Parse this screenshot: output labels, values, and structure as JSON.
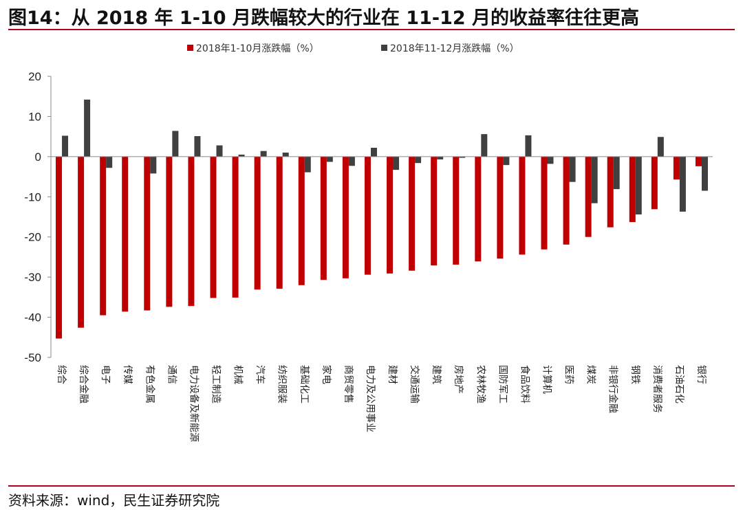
{
  "title": "图14：从 2018 年 1-10 月跌幅较大的行业在 11-12 月的收益率往往更高",
  "source": "资料来源：wind，民生证券研究院",
  "chart_data": {
    "type": "bar",
    "ylim": [
      -50,
      20
    ],
    "yticks": [
      20,
      10,
      0,
      -10,
      -20,
      -30,
      -40,
      -50
    ],
    "legend_position": "top-center",
    "grid": false,
    "categories": [
      "综合",
      "综合金融",
      "电子",
      "传媒",
      "有色金属",
      "通信",
      "电力设备及新能源",
      "轻工制造",
      "机械",
      "汽车",
      "纺织服装",
      "基础化工",
      "家电",
      "商贸零售",
      "电力及公用事业",
      "建材",
      "交通运输",
      "建筑",
      "房地产",
      "农林牧渔",
      "国防军工",
      "食品饮料",
      "计算机",
      "医药",
      "煤炭",
      "非银行金融",
      "钢铁",
      "消费者服务",
      "石油石化",
      "银行"
    ],
    "series": [
      {
        "name": "2018年1-10月涨跌幅（%）",
        "color": "#c00000",
        "values": [
          -45.3,
          -42.6,
          -39.5,
          -38.6,
          -38.3,
          -37.4,
          -37.2,
          -35.2,
          -35.1,
          -33.1,
          -32.9,
          -32.0,
          -30.7,
          -30.3,
          -29.4,
          -29.1,
          -28.4,
          -27.1,
          -26.9,
          -26.1,
          -25.4,
          -24.4,
          -23.1,
          -21.9,
          -20.0,
          -17.6,
          -16.3,
          -13.1,
          -5.7,
          -2.4
        ]
      },
      {
        "name": "2018年11-12月涨跌幅（%）",
        "color": "#404040",
        "values": [
          5.2,
          14.2,
          -2.8,
          0.0,
          -4.2,
          6.4,
          5.1,
          2.8,
          0.5,
          1.4,
          1.0,
          -3.9,
          -1.3,
          -2.3,
          2.2,
          -3.3,
          -1.6,
          -0.7,
          -0.3,
          5.6,
          -2.1,
          5.3,
          -1.8,
          -6.3,
          -11.6,
          -8.1,
          -14.4,
          4.9,
          -13.7,
          -8.5
        ]
      }
    ]
  }
}
